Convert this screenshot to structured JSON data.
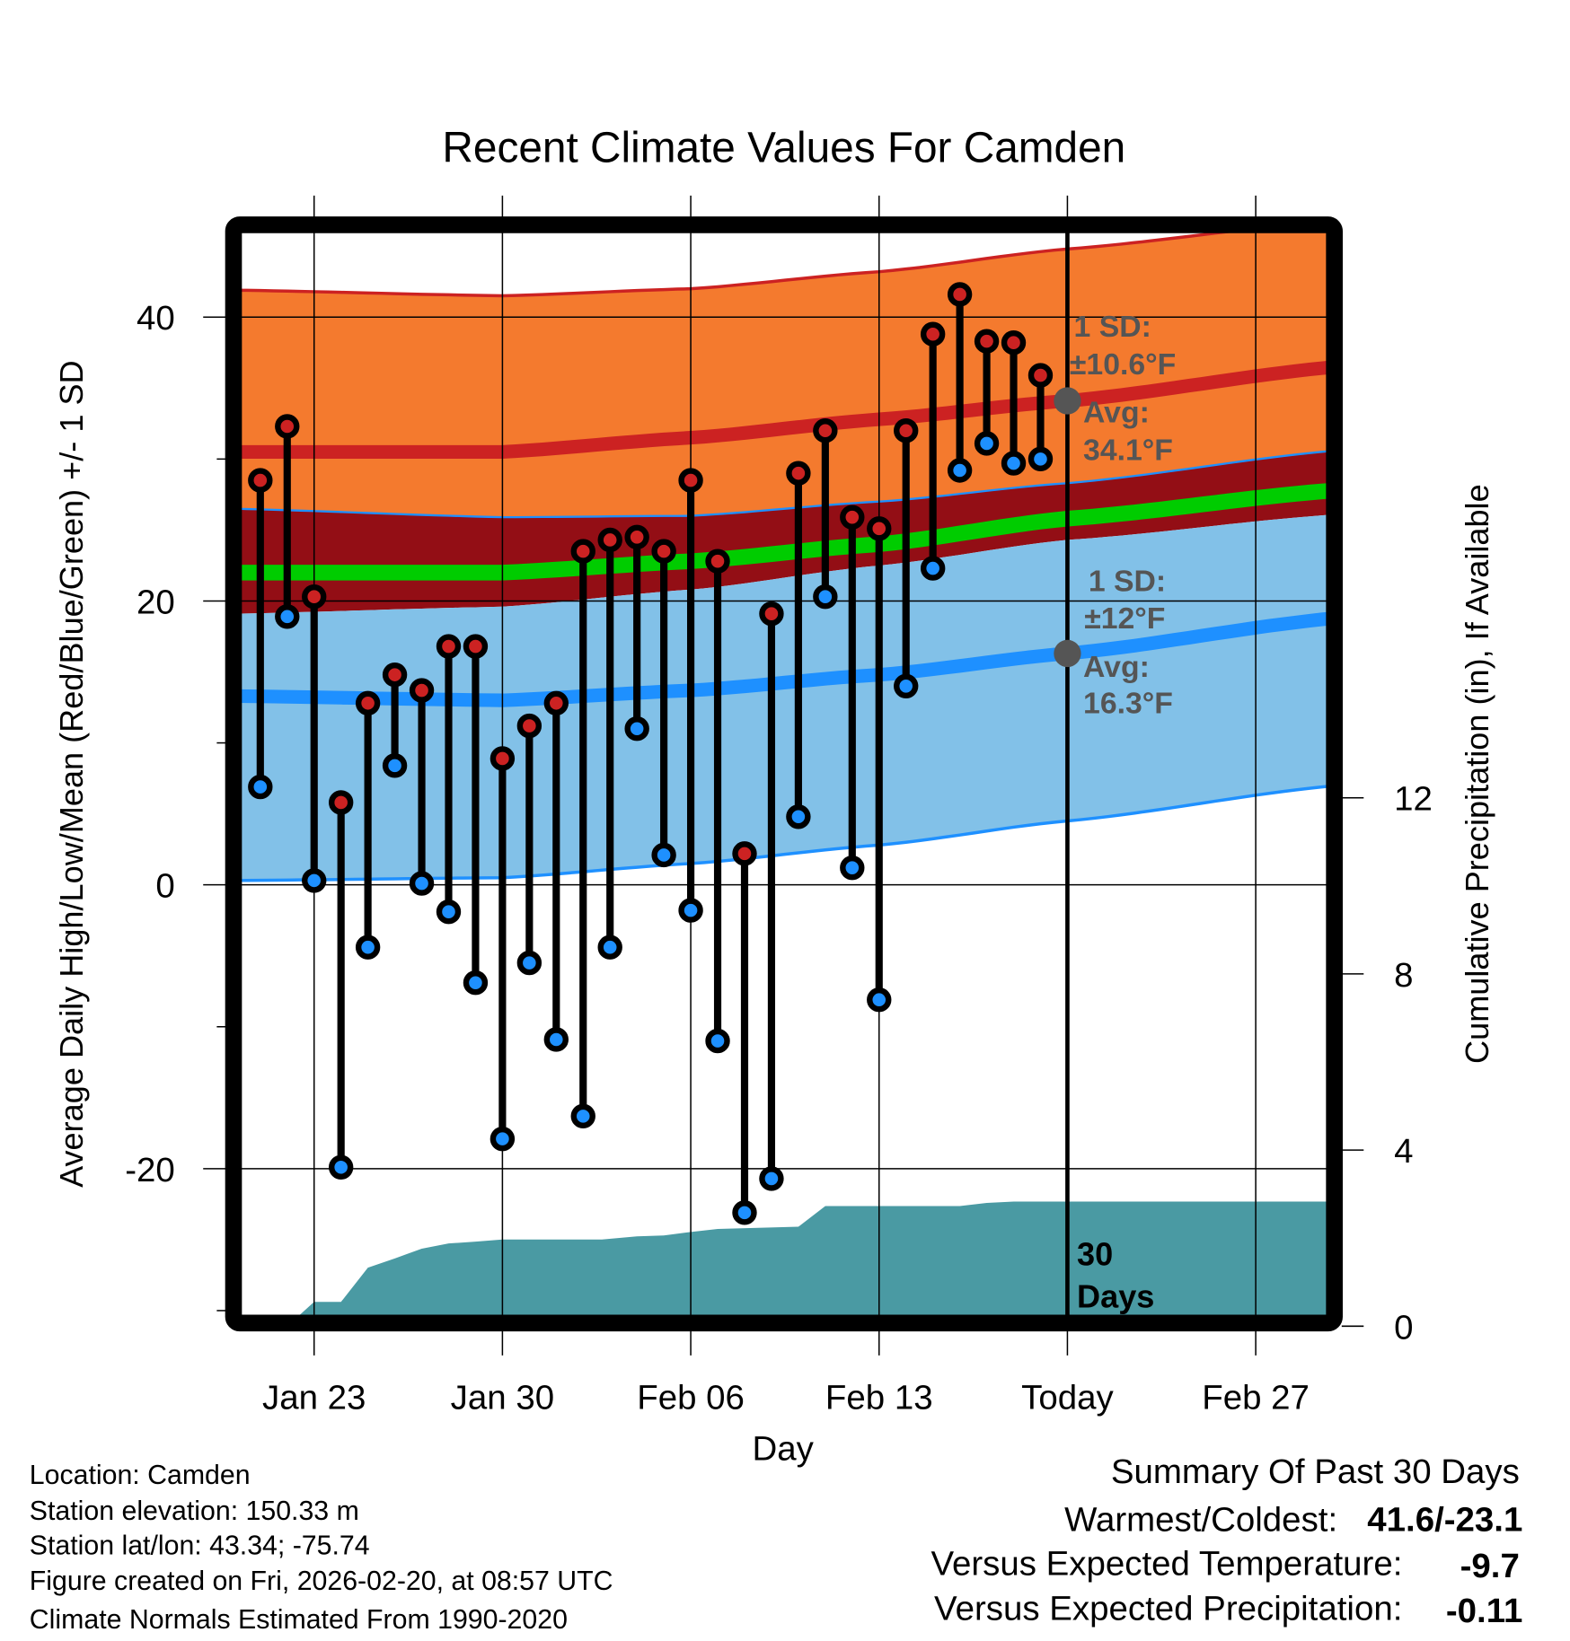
{
  "chart_data": {
    "type": "line",
    "title": "Recent Climate Values For Camden",
    "xlabel": "Day",
    "ylabel": "Average Daily High/Low/Mean (Red/Blue/Green) +/- 1 SD",
    "y2label": "Cumulative Precipitation (in), If Available",
    "ylim": [
      -30.3,
      46
    ],
    "y2lim": [
      0,
      24.6
    ],
    "x_ticks": [
      "Jan 23",
      "Jan 30",
      "Feb 06",
      "Feb 13",
      "Today",
      "Feb 27"
    ],
    "y_ticks": [
      40,
      20,
      0,
      -20
    ],
    "y2_ticks": [
      12,
      8,
      4,
      0
    ],
    "grid": true,
    "days": [
      "Jan 21",
      "Jan 22",
      "Jan 23",
      "Jan 24",
      "Jan 25",
      "Jan 26",
      "Jan 27",
      "Jan 28",
      "Jan 29",
      "Jan 30",
      "Jan 31",
      "Feb 01",
      "Feb 02",
      "Feb 03",
      "Feb 04",
      "Feb 05",
      "Feb 06",
      "Feb 07",
      "Feb 08",
      "Feb 09",
      "Feb 10",
      "Feb 11",
      "Feb 12",
      "Feb 13",
      "Feb 14",
      "Feb 15",
      "Feb 16",
      "Feb 17",
      "Feb 18",
      "Feb 19"
    ],
    "day_index_from_jan23": [
      -2,
      -1,
      0,
      1,
      2,
      3,
      4,
      5,
      6,
      7,
      8,
      9,
      10,
      11,
      12,
      13,
      14,
      15,
      16,
      17,
      18,
      19,
      20,
      21,
      22,
      23,
      24,
      25,
      26,
      27
    ],
    "series": [
      {
        "name": "Daily High",
        "values": [
          28.5,
          32.3,
          20.3,
          5.8,
          12.8,
          14.8,
          13.7,
          16.8,
          16.8,
          8.9,
          11.2,
          12.8,
          23.5,
          24.3,
          24.5,
          23.5,
          28.5,
          22.8,
          2.2,
          19.1,
          29.0,
          32.0,
          25.9,
          25.1,
          32.0,
          38.8,
          41.6,
          38.3,
          38.2,
          35.9
        ]
      },
      {
        "name": "Daily Low",
        "values": [
          6.9,
          18.9,
          0.3,
          -19.9,
          -4.4,
          8.4,
          0.1,
          -1.9,
          -6.9,
          -17.9,
          -5.5,
          -10.9,
          -16.3,
          -4.4,
          11.0,
          2.1,
          -1.8,
          -11.0,
          -23.1,
          -20.7,
          4.8,
          20.3,
          1.2,
          -8.1,
          14.0,
          22.3,
          29.2,
          31.1,
          29.7,
          30.0
        ]
      }
    ],
    "normals": {
      "day_index_from_jan23": [
        -3,
        7,
        14,
        21,
        28,
        38
      ],
      "high_plus_sd": [
        41.9,
        41.5,
        42.0,
        43.2,
        44.8,
        46.8
      ],
      "high_avg": [
        30.5,
        30.5,
        31.5,
        32.8,
        34.1,
        36.5
      ],
      "high_minus_sd": [
        26.5,
        25.9,
        26.0,
        27.0,
        28.3,
        30.6
      ],
      "mean": [
        22.0,
        22.0,
        22.8,
        24.0,
        25.8,
        27.8
      ],
      "low_plus_sd": [
        19.1,
        19.6,
        20.8,
        22.5,
        24.3,
        26.1
      ],
      "low_avg": [
        13.3,
        13.0,
        13.7,
        14.8,
        16.3,
        18.8
      ],
      "low_minus_sd": [
        0.3,
        0.5,
        1.5,
        2.8,
        4.5,
        7.0
      ]
    },
    "precip": {
      "day_index_from_jan23": [
        -2.8,
        -1,
        0,
        1,
        2,
        3,
        4,
        5,
        6,
        7,
        10.7,
        12,
        13,
        14,
        15,
        18,
        19,
        24,
        25,
        26,
        37.8
      ],
      "cumulative_in": [
        0,
        0,
        0.55,
        0.55,
        1.33,
        1.54,
        1.76,
        1.88,
        1.92,
        1.97,
        1.97,
        2.04,
        2.06,
        2.14,
        2.21,
        2.26,
        2.73,
        2.73,
        2.8,
        2.83,
        2.83
      ]
    },
    "annotations": {
      "high_sd_label": "1 SD:",
      "high_sd_value": "±10.6°F",
      "high_avg_label": "Avg:",
      "high_avg_value": "34.1°F",
      "high_avg_num": 34.1,
      "low_sd_label": "1 SD:",
      "low_sd_value": "±12°F",
      "low_avg_label": "Avg:",
      "low_avg_value": "16.3°F",
      "low_avg_num": 16.3,
      "days_label_1": "30",
      "days_label_2": "Days"
    }
  },
  "footer": {
    "location": "Location: Camden",
    "elevation": "Station elevation: 150.33 m",
    "latlon": "Station lat/lon: 43.34; -75.74",
    "created": "Figure created on Fri, 2026-02-20, at 08:57 UTC",
    "normals": "Climate Normals Estimated From 1990-2020"
  },
  "summary": {
    "title": "Summary Of Past 30 Days",
    "warmest_label": "Warmest/Coldest:",
    "warmest_value": "41.6/-23.1",
    "temp_label": "Versus Expected Temperature:",
    "temp_value": "-9.7",
    "precip_label": "Versus Expected Precipitation:",
    "precip_value": "-0.11"
  },
  "colors": {
    "orange": "#f47a2e",
    "dark_red": "#930e15",
    "red": "#cc2222",
    "green": "#00cc00",
    "light_blue": "#82c1e8",
    "blue": "#1e90ff",
    "teal": "#4a9aa3",
    "gray": "#555555",
    "temp_value": "#1e90ff",
    "precip_value": "#a0522d"
  }
}
